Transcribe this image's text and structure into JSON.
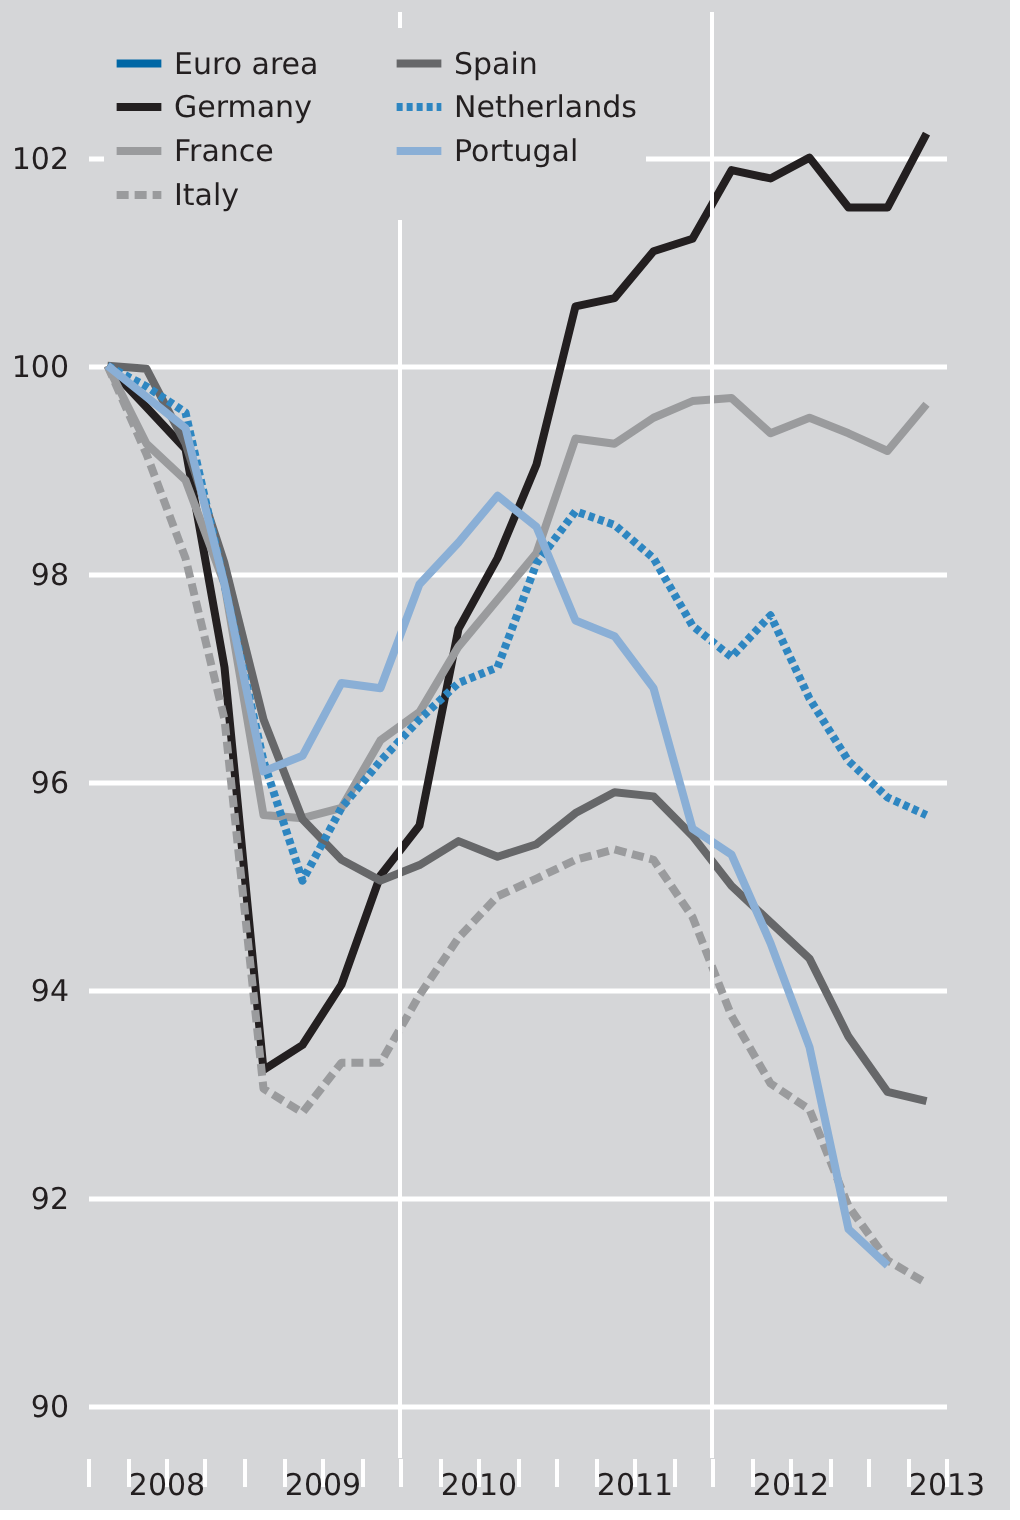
{
  "chart_data": {
    "type": "line",
    "x": [
      2008.125,
      2008.375,
      2008.625,
      2008.875,
      2009.125,
      2009.375,
      2009.625,
      2009.875,
      2010.125,
      2010.375,
      2010.625,
      2010.875,
      2011.125,
      2011.375,
      2011.625,
      2011.875,
      2012.125,
      2012.375,
      2012.625,
      2012.875,
      2013.125,
      2013.375
    ],
    "series": [
      {
        "name": "Euro area",
        "color": "#0067a5",
        "line_style": "solid",
        "values": [
          null,
          null,
          null,
          null,
          null,
          null,
          null,
          null,
          null,
          null,
          null,
          null,
          null,
          null,
          null,
          null,
          null,
          null,
          null,
          null,
          null,
          null
        ]
      },
      {
        "name": "Germany",
        "color": "#231f20",
        "line_style": "solid",
        "values": [
          100,
          99.6,
          99.2,
          97.1,
          93.23,
          93.47,
          94.05,
          95.1,
          95.58,
          97.47,
          98.15,
          99.05,
          100.57,
          100.65,
          101.1,
          101.22,
          101.88,
          101.8,
          102.0,
          101.52,
          101.52,
          102.23
        ]
      },
      {
        "name": "France",
        "color": "#9a9b9d",
        "line_style": "solid",
        "values": [
          100,
          99.25,
          98.9,
          97.9,
          95.68,
          95.65,
          95.75,
          96.4,
          96.67,
          97.3,
          97.75,
          98.2,
          99.3,
          99.25,
          99.5,
          99.66,
          99.69,
          99.35,
          99.5,
          99.35,
          99.18,
          99.63
        ]
      },
      {
        "name": "Italy",
        "color": "#9a9b9d",
        "line_style": "dashed",
        "values": [
          100,
          99.15,
          98.15,
          96.6,
          93.05,
          92.82,
          93.3,
          93.3,
          93.95,
          94.5,
          94.9,
          95.07,
          95.25,
          95.35,
          95.25,
          94.7,
          93.75,
          93.1,
          92.85,
          91.92,
          91.4,
          91.18
        ]
      },
      {
        "name": "Spain",
        "color": "#666769",
        "line_style": "solid",
        "values": [
          100,
          99.97,
          99.25,
          98.1,
          96.6,
          95.64,
          95.25,
          95.05,
          95.2,
          95.43,
          95.28,
          95.4,
          95.7,
          95.9,
          95.86,
          95.48,
          95.0,
          94.65,
          94.3,
          93.55,
          93.02,
          92.93
        ]
      },
      {
        "name": "Netherlands",
        "color": "#2e86c1",
        "line_style": "dotted",
        "values": [
          100,
          99.8,
          99.55,
          97.9,
          96.2,
          95.05,
          95.75,
          96.2,
          96.6,
          96.95,
          97.1,
          98.1,
          98.6,
          98.47,
          98.15,
          97.5,
          97.2,
          97.6,
          96.8,
          96.2,
          95.85,
          95.68
        ]
      },
      {
        "name": "Portugal",
        "color": "#8aafd6",
        "line_style": "solid",
        "values": [
          100,
          99.7,
          99.4,
          97.9,
          96.1,
          96.25,
          96.95,
          96.9,
          97.9,
          98.3,
          98.75,
          98.45,
          97.55,
          97.4,
          96.9,
          95.55,
          95.3,
          94.45,
          93.45,
          91.7,
          91.35,
          null
        ]
      }
    ],
    "xlim": [
      2008,
      2013.5
    ],
    "xticks": [
      {
        "value": 2008,
        "label": null
      },
      {
        "value": 2008.25,
        "label": null
      },
      {
        "value": 2008.5,
        "label": "2008"
      },
      {
        "value": 2008.75,
        "label": null
      },
      {
        "value": 2009,
        "label": null
      },
      {
        "value": 2009.25,
        "label": null
      },
      {
        "value": 2009.5,
        "label": "2009"
      },
      {
        "value": 2009.75,
        "label": null
      },
      {
        "value": 2010,
        "label": null
      },
      {
        "value": 2010.25,
        "label": null
      },
      {
        "value": 2010.5,
        "label": "2010"
      },
      {
        "value": 2010.75,
        "label": null
      },
      {
        "value": 2011,
        "label": null
      },
      {
        "value": 2011.25,
        "label": null
      },
      {
        "value": 2011.5,
        "label": "2011"
      },
      {
        "value": 2011.75,
        "label": null
      },
      {
        "value": 2012,
        "label": null
      },
      {
        "value": 2012.25,
        "label": null
      },
      {
        "value": 2012.5,
        "label": "2012"
      },
      {
        "value": 2012.75,
        "label": null
      },
      {
        "value": 2013,
        "label": null
      },
      {
        "value": 2013.25,
        "label": null
      },
      {
        "value": 2013.5,
        "label": "2013"
      }
    ],
    "ylim": [
      89.5,
      103.4
    ],
    "yticks": [
      90,
      92,
      94,
      96,
      98,
      100,
      102
    ],
    "grid": "y",
    "ref_lines": [
      {
        "axis": "x",
        "value": 2010,
        "color": "#ffffff"
      },
      {
        "axis": "x",
        "value": 2012,
        "color": "#ffffff"
      }
    ],
    "legend": "top left",
    "marker": "none"
  }
}
